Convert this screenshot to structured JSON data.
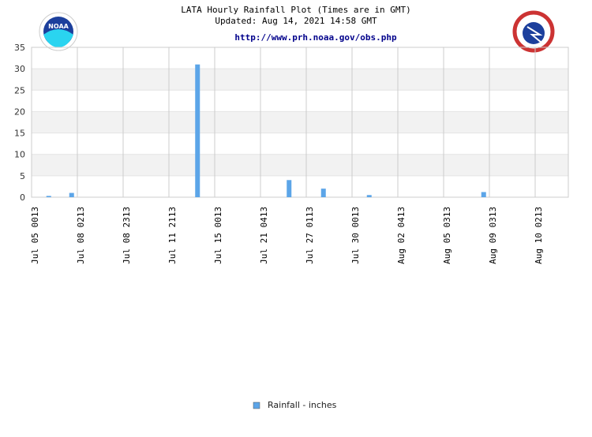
{
  "chart_data": {
    "type": "bar",
    "title": "LATA Hourly Rainfall Plot (Times are in GMT)",
    "subtitle": "Updated: Aug 14, 2021 14:58 GMT",
    "link": "http://www.prh.noaa.gov/obs.php",
    "categories": [
      "Jul 05 0013",
      null,
      null,
      null,
      "Jul 08 0213",
      null,
      null,
      null,
      "Jul 08 2313",
      null,
      null,
      null,
      "Jul 11 2113",
      null,
      null,
      null,
      "Jul 15 0013",
      null,
      null,
      null,
      "Jul 21 0413",
      null,
      null,
      null,
      "Jul 27 0113",
      null,
      null,
      null,
      "Jul 30 0013",
      null,
      null,
      null,
      "Aug 02 0413",
      null,
      null,
      null,
      "Aug 05 0313",
      null,
      null,
      null,
      "Aug 09 0313",
      null,
      null,
      null,
      "Aug 10 0213",
      null,
      null
    ],
    "series": [
      {
        "name": "Rainfall - inches",
        "color": "#5ca5e8",
        "values": [
          0,
          0.3,
          0,
          1,
          0,
          0,
          0,
          0,
          0,
          0,
          0,
          0,
          0,
          0,
          31,
          0,
          0,
          0,
          0,
          0,
          0,
          0,
          4,
          0,
          0,
          2,
          0,
          0,
          0,
          0.5,
          0,
          0,
          0,
          0,
          0,
          0,
          0,
          0,
          0,
          1.2,
          0,
          0,
          0,
          0,
          0,
          0,
          0
        ]
      }
    ],
    "ylim": [
      0,
      35
    ],
    "yticks": [
      0,
      5,
      10,
      15,
      20,
      25,
      30,
      35
    ],
    "grid": true,
    "legend": "bottom"
  }
}
